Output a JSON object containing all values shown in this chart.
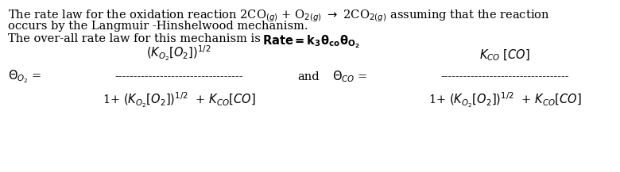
{
  "bg_color": "#ffffff",
  "text_color": "#000000",
  "figsize": [
    7.8,
    2.17
  ],
  "dpi": 100,
  "line1": "The rate law for the oxidation reaction 2CO$_{(g)}$ + O$_{2(g)}$ $\\rightarrow$ 2CO$_{2(g)}$ assuming that the reaction",
  "line2": "occurs by the Langmuir -Hinshelwood mechanism.",
  "line3_left": "The over-all rate law for this mechanism is",
  "line3_right_bold": "Rate = k",
  "line3_right_rest": "$_{3}\\theta_{co}\\theta_{O_2}$",
  "theta_O2_label": "$\\Theta_{O_2}$ =",
  "theta_CO_label": "$\\Theta_{CO}$ =",
  "and_label": "and",
  "numerator_left": "$(K_{O_2}[O_2])^{1/2}$",
  "numerator_right": "$K_{CO}$ $[CO]$",
  "denominator_left": "1+ $(K_{O_2}[O_2])^{1/2}$  + $K_{CO}[CO]$",
  "denominator_right": "1+ $(K_{O_2}[O_2])^{1/2}$  + $K_{CO}[CO]$",
  "fraction_line_char": "----------------------------------",
  "font_size_text": 10.5,
  "font_size_eq": 10.5
}
